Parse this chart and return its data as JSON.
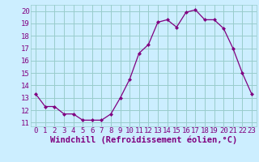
{
  "x": [
    0,
    1,
    2,
    3,
    4,
    5,
    6,
    7,
    8,
    9,
    10,
    11,
    12,
    13,
    14,
    15,
    16,
    17,
    18,
    19,
    20,
    21,
    22,
    23
  ],
  "y": [
    13.3,
    12.3,
    12.3,
    11.7,
    11.7,
    11.2,
    11.2,
    11.2,
    11.7,
    13.0,
    14.5,
    16.6,
    17.3,
    19.1,
    19.3,
    18.7,
    19.9,
    20.1,
    19.3,
    19.3,
    18.6,
    17.0,
    15.0,
    13.3
  ],
  "xlim": [
    -0.5,
    23.5
  ],
  "ylim": [
    10.7,
    20.5
  ],
  "yticks": [
    11,
    12,
    13,
    14,
    15,
    16,
    17,
    18,
    19,
    20
  ],
  "xticks": [
    0,
    1,
    2,
    3,
    4,
    5,
    6,
    7,
    8,
    9,
    10,
    11,
    12,
    13,
    14,
    15,
    16,
    17,
    18,
    19,
    20,
    21,
    22,
    23
  ],
  "xlabel": "Windchill (Refroidissement éolien,°C)",
  "line_color": "#800080",
  "marker": "D",
  "marker_size": 2,
  "bg_color": "#cceeff",
  "grid_color": "#99cccc",
  "tick_label_fontsize": 6.5,
  "xlabel_fontsize": 7.5,
  "label_color": "#800080"
}
